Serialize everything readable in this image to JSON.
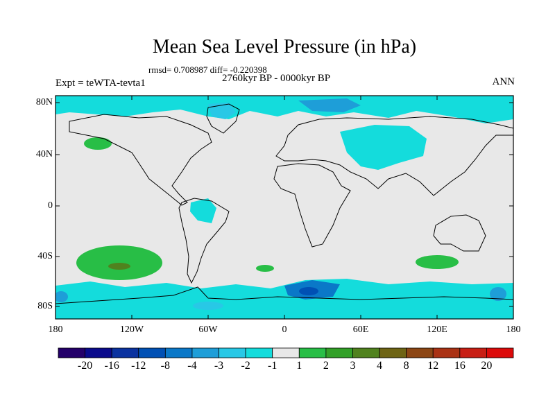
{
  "title": "Mean Sea Level Pressure (in hPa)",
  "stats": "rmsd= 0.708987 diff= -0.220398",
  "period": "2760kyr BP - 0000kyr BP",
  "experiment": "Expt = teWTA-tevta1",
  "season": "ANN",
  "map": {
    "lat_ticks": [
      "80N",
      "40N",
      "0",
      "40S",
      "80S"
    ],
    "lon_ticks": [
      "180",
      "120W",
      "60W",
      "0",
      "60E",
      "120E",
      "180"
    ],
    "background_color": "#e8e8e8"
  },
  "colorbar": {
    "labels": [
      "-20",
      "-16",
      "-12",
      "-8",
      "-4",
      "-3",
      "-2",
      "-1",
      "1",
      "2",
      "3",
      "4",
      "8",
      "12",
      "16",
      "20"
    ],
    "colors": [
      "#24006a",
      "#0a0a8c",
      "#0a32a0",
      "#0050b4",
      "#0a78c8",
      "#1e9ed8",
      "#28c8e6",
      "#14dcdc",
      "#e8e8e8",
      "#28be46",
      "#32a028",
      "#50821e",
      "#6e6414",
      "#8c4614",
      "#aa3214",
      "#c81e14",
      "#dc0a0a"
    ]
  }
}
